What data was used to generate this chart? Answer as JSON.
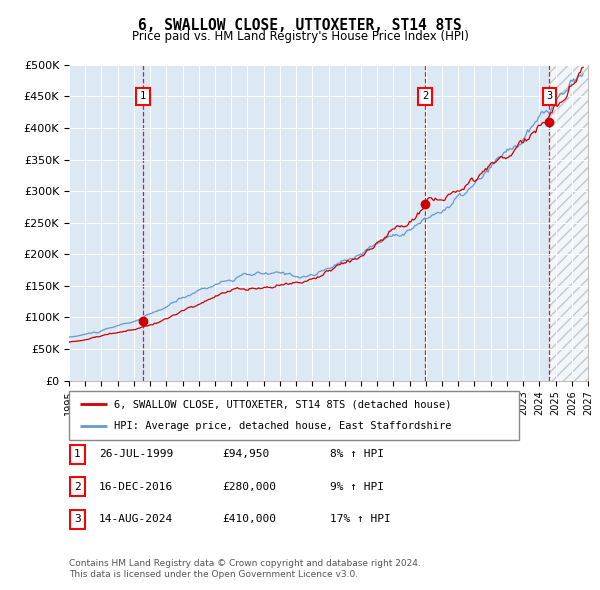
{
  "title": "6, SWALLOW CLOSE, UTTOXETER, ST14 8TS",
  "subtitle": "Price paid vs. HM Land Registry's House Price Index (HPI)",
  "legend_line1": "6, SWALLOW CLOSE, UTTOXETER, ST14 8TS (detached house)",
  "legend_line2": "HPI: Average price, detached house, East Staffordshire",
  "sale_labels": [
    {
      "num": 1,
      "date": "26-JUL-1999",
      "price": "£94,950",
      "pct": "8% ↑ HPI",
      "year_x": 1999.57
    },
    {
      "num": 2,
      "date": "16-DEC-2016",
      "price": "£280,000",
      "pct": "9% ↑ HPI",
      "year_x": 2016.96
    },
    {
      "num": 3,
      "date": "14-AUG-2024",
      "price": "£410,000",
      "pct": "17% ↑ HPI",
      "year_x": 2024.62
    }
  ],
  "sale_prices": [
    94950,
    280000,
    410000
  ],
  "sale_years": [
    1999.57,
    2016.96,
    2024.62
  ],
  "hpi_color": "#6699cc",
  "price_color": "#cc0000",
  "background_color": "#dce9f5",
  "grid_color": "#ffffff",
  "ylim": [
    0,
    500000
  ],
  "yticks": [
    0,
    50000,
    100000,
    150000,
    200000,
    250000,
    300000,
    350000,
    400000,
    450000,
    500000
  ],
  "xlim_start": 1995.0,
  "xlim_end": 2027.0,
  "footnote": "Contains HM Land Registry data © Crown copyright and database right 2024.\nThis data is licensed under the Open Government Licence v3.0."
}
